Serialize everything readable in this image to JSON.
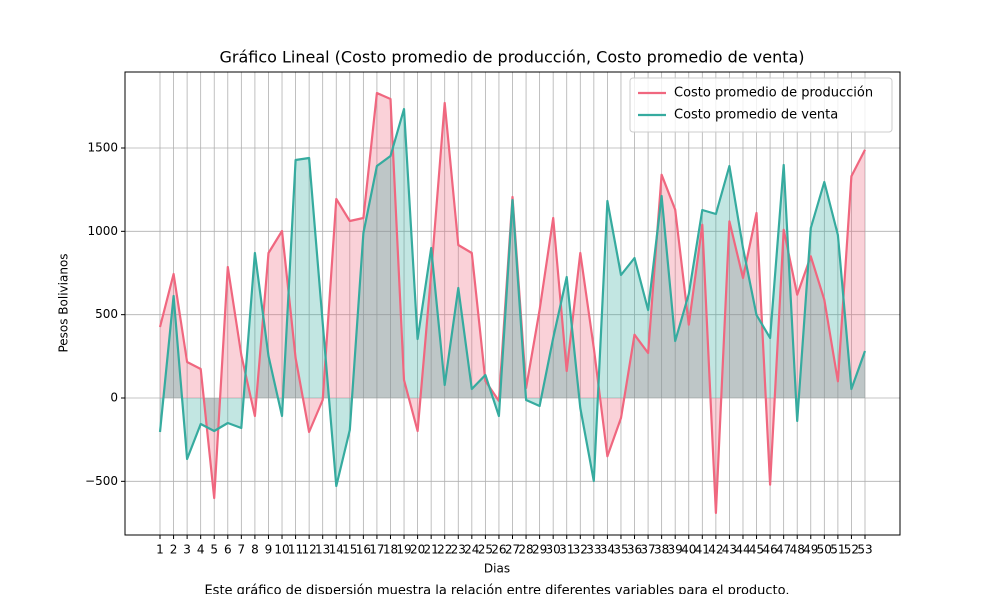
{
  "chart_data": {
    "type": "line",
    "title": "Gráfico Lineal (Costo promedio de producción, Costo promedio de venta)",
    "xlabel": "Dias",
    "ylabel": "Pesos Bolivianos",
    "caption": "Este gráfico de dispersión muestra la relación entre diferentes variables para el producto.",
    "categories": [
      "1",
      "2",
      "3",
      "4",
      "5",
      "6",
      "7",
      "8",
      "9",
      "10",
      "11",
      "12",
      "13",
      "14",
      "15",
      "16",
      "17",
      "18",
      "19",
      "20",
      "21",
      "22",
      "23",
      "24",
      "25",
      "26",
      "27",
      "28",
      "29",
      "30",
      "31",
      "32",
      "33",
      "34",
      "35",
      "36",
      "37",
      "38",
      "39",
      "40",
      "41",
      "42",
      "43",
      "44",
      "45",
      "46",
      "47",
      "48",
      "49",
      "50",
      "51",
      "52",
      "53"
    ],
    "series": [
      {
        "name": "Costo promedio de producción",
        "color": "#f0677f",
        "fill": true,
        "values": [
          426,
          744,
          216,
          174,
          -600,
          786,
          258,
          -108,
          870,
          1002,
          240,
          -204,
          -12,
          1194,
          1062,
          1080,
          1830,
          1794,
          108,
          -198,
          750,
          1770,
          918,
          870,
          102,
          -18,
          1206,
          60,
          528,
          1080,
          162,
          870,
          300,
          -350,
          -120,
          380,
          270,
          1340,
          1130,
          440,
          1040,
          -690,
          1060,
          720,
          1110,
          -520,
          1010,
          620,
          850,
          590,
          100,
          1330,
          1490
        ]
      },
      {
        "name": "Costo promedio de venta",
        "color": "#36ab9f",
        "fill": true,
        "values": [
          -204,
          612,
          -366,
          -156,
          -198,
          -150,
          -180,
          870,
          252,
          -108,
          1428,
          1440,
          450,
          -528,
          -192,
          990,
          1392,
          1452,
          1734,
          354,
          900,
          78,
          660,
          54,
          138,
          -108,
          1188,
          -12,
          -48,
          360,
          726,
          -60,
          -498,
          1182,
          738,
          840,
          528,
          1212,
          342,
          624,
          1128,
          1104,
          1392,
          900,
          498,
          360,
          1398,
          -138,
          1020,
          1296,
          978,
          54,
          282
        ]
      }
    ],
    "ylim": [
      -822,
      1956
    ],
    "yticks": [
      {
        "value": -500,
        "label": "−500"
      },
      0,
      500,
      1000,
      1500
    ],
    "grid": true,
    "legend": "upper right"
  }
}
